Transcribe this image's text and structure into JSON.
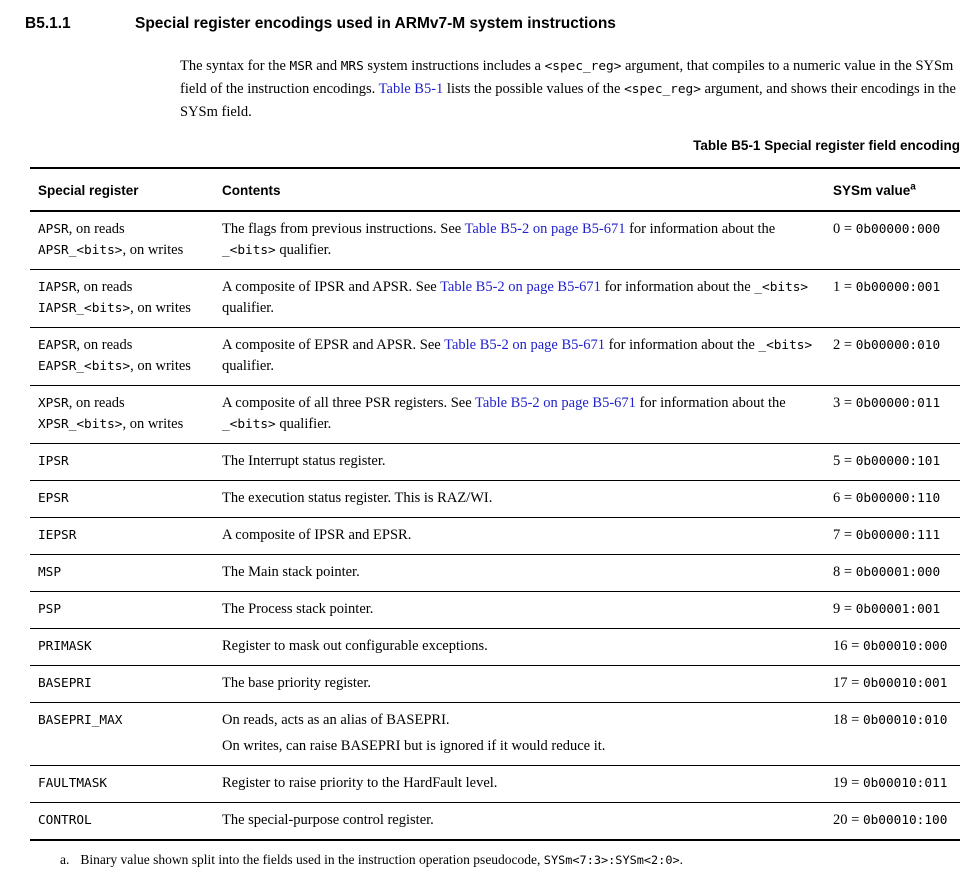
{
  "page": {
    "background": "#ffffff",
    "text_color": "#000000",
    "link_color": "#2222cc"
  },
  "section": {
    "number": "B5.1.1",
    "title": "Special register encodings used in ARMv7-M system instructions"
  },
  "intro": {
    "segments": [
      {
        "t": "The syntax for the "
      },
      {
        "t": "MSR",
        "mono": true
      },
      {
        "t": " and "
      },
      {
        "t": "MRS",
        "mono": true
      },
      {
        "t": " system instructions includes a "
      },
      {
        "t": "<spec_reg>",
        "mono": true
      },
      {
        "t": " argument, that compiles to a numeric value in the SYSm field of the instruction encodings. "
      },
      {
        "t": "Table B5-1",
        "link": true
      },
      {
        "t": " lists the possible values of the "
      },
      {
        "t": "<spec_reg>",
        "mono": true
      },
      {
        "t": " argument, and shows their encodings in the SYSm field."
      }
    ]
  },
  "table": {
    "caption": "Table B5-1 Special register field encoding",
    "headers": [
      "Special register",
      "Contents",
      "SYSm value"
    ],
    "header_footnote_ref": "a",
    "rows": [
      {
        "register": [
          [
            {
              "t": "APSR",
              "mono": true
            },
            {
              "t": ", on reads"
            }
          ],
          [
            {
              "t": "APSR_<bits>",
              "mono": true
            },
            {
              "t": ", on writes"
            }
          ]
        ],
        "contents": [
          [
            {
              "t": "The flags from previous instructions. See "
            },
            {
              "t": "Table B5-2 on page B5-671",
              "link": true
            },
            {
              "t": " for information about the "
            },
            {
              "t": "_<bits>",
              "mono": true
            },
            {
              "t": " qualifier."
            }
          ]
        ],
        "sysm": [
          {
            "t": "0 = "
          },
          {
            "t": "0b00000:000",
            "mono": true
          }
        ]
      },
      {
        "register": [
          [
            {
              "t": "IAPSR",
              "mono": true
            },
            {
              "t": ", on reads"
            }
          ],
          [
            {
              "t": "IAPSR_<bits>",
              "mono": true
            },
            {
              "t": ", on writes"
            }
          ]
        ],
        "contents": [
          [
            {
              "t": "A composite of IPSR and APSR. See "
            },
            {
              "t": "Table B5-2 on page B5-671",
              "link": true
            },
            {
              "t": " for information about the "
            },
            {
              "t": "_<bits>",
              "mono": true
            },
            {
              "t": " qualifier."
            }
          ]
        ],
        "sysm": [
          {
            "t": "1 = "
          },
          {
            "t": "0b00000:001",
            "mono": true
          }
        ]
      },
      {
        "register": [
          [
            {
              "t": "EAPSR",
              "mono": true
            },
            {
              "t": ", on reads"
            }
          ],
          [
            {
              "t": "EAPSR_<bits>",
              "mono": true
            },
            {
              "t": ", on writes"
            }
          ]
        ],
        "contents": [
          [
            {
              "t": "A composite of EPSR and APSR. See "
            },
            {
              "t": "Table B5-2 on page B5-671",
              "link": true
            },
            {
              "t": " for information about the "
            },
            {
              "t": "_<bits>",
              "mono": true
            },
            {
              "t": " qualifier."
            }
          ]
        ],
        "sysm": [
          {
            "t": "2 = "
          },
          {
            "t": "0b00000:010",
            "mono": true
          }
        ]
      },
      {
        "register": [
          [
            {
              "t": "XPSR",
              "mono": true
            },
            {
              "t": ", on reads"
            }
          ],
          [
            {
              "t": "XPSR_<bits>",
              "mono": true
            },
            {
              "t": ", on writes"
            }
          ]
        ],
        "contents": [
          [
            {
              "t": "A composite of all three PSR registers. See "
            },
            {
              "t": "Table B5-2 on page B5-671",
              "link": true
            },
            {
              "t": " for information about the "
            },
            {
              "t": "_<bits>",
              "mono": true
            },
            {
              "t": " qualifier."
            }
          ]
        ],
        "sysm": [
          {
            "t": "3 = "
          },
          {
            "t": "0b00000:011",
            "mono": true
          }
        ]
      },
      {
        "register": [
          [
            {
              "t": "IPSR",
              "mono": true
            }
          ]
        ],
        "contents": [
          [
            {
              "t": "The Interrupt status register."
            }
          ]
        ],
        "sysm": [
          {
            "t": "5 = "
          },
          {
            "t": "0b00000:101",
            "mono": true
          }
        ]
      },
      {
        "register": [
          [
            {
              "t": "EPSR",
              "mono": true
            }
          ]
        ],
        "contents": [
          [
            {
              "t": "The execution status register. This is RAZ/WI."
            }
          ]
        ],
        "sysm": [
          {
            "t": "6 = "
          },
          {
            "t": "0b00000:110",
            "mono": true
          }
        ]
      },
      {
        "register": [
          [
            {
              "t": "IEPSR",
              "mono": true
            }
          ]
        ],
        "contents": [
          [
            {
              "t": "A composite of IPSR and EPSR."
            }
          ]
        ],
        "sysm": [
          {
            "t": "7 = "
          },
          {
            "t": "0b00000:111",
            "mono": true
          }
        ]
      },
      {
        "register": [
          [
            {
              "t": "MSP",
              "mono": true
            }
          ]
        ],
        "contents": [
          [
            {
              "t": "The Main stack pointer."
            }
          ]
        ],
        "sysm": [
          {
            "t": "8 = "
          },
          {
            "t": "0b00001:000",
            "mono": true
          }
        ]
      },
      {
        "register": [
          [
            {
              "t": "PSP",
              "mono": true
            }
          ]
        ],
        "contents": [
          [
            {
              "t": "The Process stack pointer."
            }
          ]
        ],
        "sysm": [
          {
            "t": "9 = "
          },
          {
            "t": "0b00001:001",
            "mono": true
          }
        ]
      },
      {
        "register": [
          [
            {
              "t": "PRIMASK",
              "mono": true
            }
          ]
        ],
        "contents": [
          [
            {
              "t": "Register to mask out configurable exceptions."
            }
          ]
        ],
        "sysm": [
          {
            "t": "16 = "
          },
          {
            "t": "0b00010:000",
            "mono": true
          }
        ]
      },
      {
        "register": [
          [
            {
              "t": "BASEPRI",
              "mono": true
            }
          ]
        ],
        "contents": [
          [
            {
              "t": "The base priority register."
            }
          ]
        ],
        "sysm": [
          {
            "t": "17 = "
          },
          {
            "t": "0b00010:001",
            "mono": true
          }
        ]
      },
      {
        "register": [
          [
            {
              "t": "BASEPRI_MAX",
              "mono": true
            }
          ]
        ],
        "contents": [
          [
            {
              "t": "On reads, acts as an alias of BASEPRI."
            }
          ],
          [
            {
              "t": "On writes, can raise BASEPRI but is ignored if it would reduce it."
            }
          ]
        ],
        "sysm": [
          {
            "t": "18 = "
          },
          {
            "t": "0b00010:010",
            "mono": true
          }
        ]
      },
      {
        "register": [
          [
            {
              "t": "FAULTMASK",
              "mono": true
            }
          ]
        ],
        "contents": [
          [
            {
              "t": "Register to raise priority to the HardFault level."
            }
          ]
        ],
        "sysm": [
          {
            "t": "19 = "
          },
          {
            "t": "0b00010:011",
            "mono": true
          }
        ]
      },
      {
        "register": [
          [
            {
              "t": "CONTROL",
              "mono": true
            }
          ]
        ],
        "contents": [
          [
            {
              "t": "The special-purpose control register."
            }
          ]
        ],
        "sysm": [
          {
            "t": "20 = "
          },
          {
            "t": "0b00010:100",
            "mono": true
          }
        ]
      }
    ],
    "footnote": {
      "marker": "a.",
      "segments": [
        {
          "t": "Binary value shown split into the fields used in the instruction operation pseudocode, "
        },
        {
          "t": "SYSm<7:3>:SYSm<2:0>",
          "mono": true
        },
        {
          "t": "."
        }
      ]
    }
  }
}
